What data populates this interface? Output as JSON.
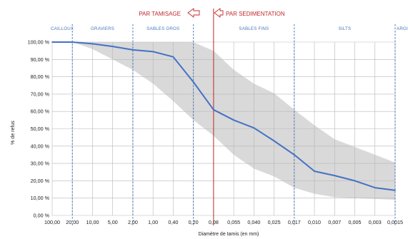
{
  "chart_data": {
    "type": "line",
    "title": "",
    "xlabel": "Diamètre de tamis (en mm)",
    "ylabel": "% de refus",
    "x_categories": [
      "100,00",
      "20,00",
      "10,00",
      "5,00",
      "2,00",
      "1,00",
      "0,40",
      "0,20",
      "0,08",
      "0,055",
      "0,040",
      "0,025",
      "0,017",
      "0,010",
      "0,007",
      "0,005",
      "0,003",
      "0,0015"
    ],
    "y_ticks": [
      "0,00 %",
      "10,00 %",
      "20,00 %",
      "30,00 %",
      "40,00 %",
      "50,00 %",
      "60,00 %",
      "70,00 %",
      "80,00 %",
      "90,00 %",
      "100,00 %"
    ],
    "ylim": [
      0,
      100
    ],
    "series": [
      {
        "color": "#4472c4",
        "values": [
          100,
          100,
          99,
          97.5,
          95.5,
          94.5,
          91.5,
          77,
          61,
          55,
          50.5,
          43,
          35,
          25.5,
          23,
          20,
          16,
          14.5
        ]
      }
    ],
    "band": {
      "color": "#d9d9d9",
      "start_index": 1,
      "upper": [
        100,
        100,
        100,
        100,
        100,
        100,
        100,
        95,
        84,
        76,
        70.5,
        61,
        52,
        44,
        39.5,
        35,
        30.5
      ],
      "lower": [
        100,
        96,
        90,
        84,
        76,
        66,
        55,
        46,
        35,
        27,
        22.5,
        16,
        12.5,
        10.5,
        10,
        9.5,
        9
      ]
    },
    "zones": [
      {
        "label": "CAILLOUX",
        "from": 0,
        "to": 1
      },
      {
        "label": "GRAVIERS",
        "from": 1,
        "to": 4
      },
      {
        "label": "SABLES GROS",
        "from": 4,
        "to": 7
      },
      {
        "label": "SABLES FINS",
        "from": 8,
        "to": 12
      },
      {
        "label": "SILTS",
        "from": 12,
        "to": 17
      },
      {
        "label": "ARGILES",
        "from": 17,
        "to": 17
      }
    ],
    "zone_boundaries": [
      1,
      4,
      7,
      8,
      12,
      17
    ],
    "separator": {
      "at_index": 8,
      "color": "#c0282a",
      "left_label": "PAR TAMISAGE",
      "right_label": "PAR SEDIMENTATION"
    },
    "grid": true
  },
  "colors": {
    "grid": "#b7b7b7",
    "zone_line": "#4a78b8",
    "axis": "#888888"
  }
}
